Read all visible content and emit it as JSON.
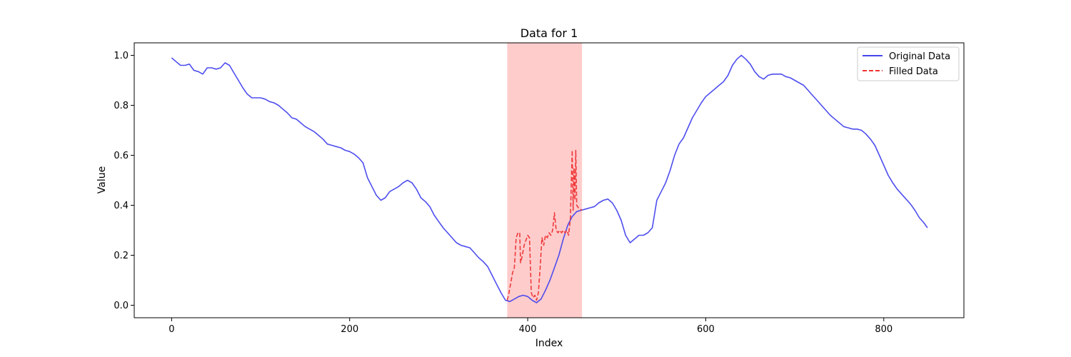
{
  "chart_data": {
    "type": "line",
    "title": "Data for 1",
    "xlabel": "Index",
    "ylabel": "Value",
    "xlim": [
      -42,
      890
    ],
    "ylim": [
      -0.05,
      1.05
    ],
    "x_ticks": [
      0,
      200,
      400,
      600,
      800
    ],
    "y_ticks": [
      0.0,
      0.2,
      0.4,
      0.6,
      0.8,
      1.0
    ],
    "x_tick_labels": [
      "0",
      "200",
      "400",
      "600",
      "800"
    ],
    "y_tick_labels": [
      "0.0",
      "0.2",
      "0.4",
      "0.6",
      "0.8",
      "1.0"
    ],
    "legend_position": "top-right",
    "grid": false,
    "shaded_region": {
      "x_start": 377,
      "x_end": 461,
      "color": "#ff9999"
    },
    "series": [
      {
        "name": "Original Data",
        "color": "#4444ee",
        "style": "solid",
        "points": [
          [
            0,
            0.99
          ],
          [
            5,
            0.975
          ],
          [
            10,
            0.96
          ],
          [
            15,
            0.96
          ],
          [
            20,
            0.965
          ],
          [
            25,
            0.94
          ],
          [
            30,
            0.935
          ],
          [
            35,
            0.925
          ],
          [
            40,
            0.95
          ],
          [
            45,
            0.95
          ],
          [
            50,
            0.945
          ],
          [
            55,
            0.95
          ],
          [
            60,
            0.97
          ],
          [
            65,
            0.96
          ],
          [
            70,
            0.93
          ],
          [
            75,
            0.9
          ],
          [
            80,
            0.87
          ],
          [
            85,
            0.845
          ],
          [
            90,
            0.83
          ],
          [
            95,
            0.83
          ],
          [
            100,
            0.83
          ],
          [
            105,
            0.825
          ],
          [
            110,
            0.815
          ],
          [
            115,
            0.81
          ],
          [
            120,
            0.8
          ],
          [
            125,
            0.785
          ],
          [
            130,
            0.77
          ],
          [
            135,
            0.75
          ],
          [
            140,
            0.745
          ],
          [
            145,
            0.73
          ],
          [
            150,
            0.715
          ],
          [
            155,
            0.705
          ],
          [
            160,
            0.695
          ],
          [
            165,
            0.68
          ],
          [
            170,
            0.665
          ],
          [
            175,
            0.645
          ],
          [
            180,
            0.64
          ],
          [
            185,
            0.635
          ],
          [
            190,
            0.63
          ],
          [
            195,
            0.62
          ],
          [
            200,
            0.615
          ],
          [
            205,
            0.605
          ],
          [
            210,
            0.59
          ],
          [
            215,
            0.57
          ],
          [
            220,
            0.51
          ],
          [
            225,
            0.475
          ],
          [
            230,
            0.44
          ],
          [
            235,
            0.42
          ],
          [
            240,
            0.43
          ],
          [
            245,
            0.455
          ],
          [
            250,
            0.465
          ],
          [
            255,
            0.475
          ],
          [
            260,
            0.49
          ],
          [
            265,
            0.5
          ],
          [
            270,
            0.49
          ],
          [
            275,
            0.465
          ],
          [
            280,
            0.43
          ],
          [
            285,
            0.415
          ],
          [
            290,
            0.395
          ],
          [
            295,
            0.36
          ],
          [
            300,
            0.335
          ],
          [
            305,
            0.31
          ],
          [
            310,
            0.29
          ],
          [
            315,
            0.27
          ],
          [
            320,
            0.25
          ],
          [
            325,
            0.24
          ],
          [
            330,
            0.235
          ],
          [
            335,
            0.23
          ],
          [
            340,
            0.21
          ],
          [
            345,
            0.19
          ],
          [
            350,
            0.175
          ],
          [
            355,
            0.155
          ],
          [
            360,
            0.12
          ],
          [
            365,
            0.085
          ],
          [
            370,
            0.05
          ],
          [
            375,
            0.02
          ],
          [
            380,
            0.015
          ],
          [
            385,
            0.025
          ],
          [
            390,
            0.035
          ],
          [
            395,
            0.04
          ],
          [
            400,
            0.035
          ],
          [
            405,
            0.02
          ],
          [
            410,
            0.01
          ],
          [
            415,
            0.025
          ],
          [
            420,
            0.06
          ],
          [
            425,
            0.1
          ],
          [
            430,
            0.15
          ],
          [
            435,
            0.2
          ],
          [
            440,
            0.265
          ],
          [
            445,
            0.32
          ],
          [
            450,
            0.355
          ],
          [
            455,
            0.375
          ],
          [
            460,
            0.38
          ],
          [
            465,
            0.385
          ],
          [
            470,
            0.39
          ],
          [
            475,
            0.395
          ],
          [
            480,
            0.41
          ],
          [
            485,
            0.42
          ],
          [
            490,
            0.425
          ],
          [
            495,
            0.41
          ],
          [
            500,
            0.38
          ],
          [
            505,
            0.34
          ],
          [
            510,
            0.28
          ],
          [
            515,
            0.25
          ],
          [
            520,
            0.265
          ],
          [
            525,
            0.28
          ],
          [
            530,
            0.28
          ],
          [
            535,
            0.29
          ],
          [
            540,
            0.31
          ],
          [
            545,
            0.42
          ],
          [
            550,
            0.455
          ],
          [
            555,
            0.49
          ],
          [
            560,
            0.54
          ],
          [
            565,
            0.6
          ],
          [
            570,
            0.645
          ],
          [
            575,
            0.67
          ],
          [
            580,
            0.71
          ],
          [
            585,
            0.75
          ],
          [
            590,
            0.78
          ],
          [
            595,
            0.81
          ],
          [
            600,
            0.835
          ],
          [
            605,
            0.85
          ],
          [
            610,
            0.865
          ],
          [
            615,
            0.88
          ],
          [
            620,
            0.895
          ],
          [
            625,
            0.92
          ],
          [
            630,
            0.96
          ],
          [
            635,
            0.985
          ],
          [
            640,
            1.0
          ],
          [
            645,
            0.985
          ],
          [
            650,
            0.965
          ],
          [
            655,
            0.935
          ],
          [
            660,
            0.915
          ],
          [
            665,
            0.905
          ],
          [
            670,
            0.92
          ],
          [
            675,
            0.925
          ],
          [
            680,
            0.925
          ],
          [
            685,
            0.925
          ],
          [
            690,
            0.915
          ],
          [
            695,
            0.91
          ],
          [
            700,
            0.9
          ],
          [
            705,
            0.89
          ],
          [
            710,
            0.88
          ],
          [
            715,
            0.86
          ],
          [
            720,
            0.84
          ],
          [
            725,
            0.82
          ],
          [
            730,
            0.8
          ],
          [
            735,
            0.78
          ],
          [
            740,
            0.76
          ],
          [
            745,
            0.745
          ],
          [
            750,
            0.73
          ],
          [
            755,
            0.715
          ],
          [
            760,
            0.71
          ],
          [
            765,
            0.705
          ],
          [
            770,
            0.705
          ],
          [
            775,
            0.7
          ],
          [
            780,
            0.685
          ],
          [
            785,
            0.665
          ],
          [
            790,
            0.64
          ],
          [
            795,
            0.6
          ],
          [
            800,
            0.56
          ],
          [
            805,
            0.52
          ],
          [
            810,
            0.49
          ],
          [
            815,
            0.465
          ],
          [
            820,
            0.445
          ],
          [
            825,
            0.425
          ],
          [
            830,
            0.405
          ],
          [
            835,
            0.38
          ],
          [
            840,
            0.35
          ],
          [
            845,
            0.33
          ],
          [
            849,
            0.31
          ]
        ]
      },
      {
        "name": "Filled Data",
        "color": "#ee3333",
        "style": "dashed",
        "points": [
          [
            377,
            0.02
          ],
          [
            379,
            0.05
          ],
          [
            381,
            0.09
          ],
          [
            383,
            0.13
          ],
          [
            385,
            0.15
          ],
          [
            387,
            0.27
          ],
          [
            389,
            0.29
          ],
          [
            391,
            0.29
          ],
          [
            392,
            0.17
          ],
          [
            394,
            0.2
          ],
          [
            396,
            0.24
          ],
          [
            398,
            0.26
          ],
          [
            400,
            0.28
          ],
          [
            402,
            0.27
          ],
          [
            404,
            0.05
          ],
          [
            406,
            0.03
          ],
          [
            408,
            0.04
          ],
          [
            410,
            0.02
          ],
          [
            412,
            0.05
          ],
          [
            414,
            0.15
          ],
          [
            416,
            0.27
          ],
          [
            418,
            0.24
          ],
          [
            420,
            0.28
          ],
          [
            422,
            0.27
          ],
          [
            424,
            0.29
          ],
          [
            426,
            0.28
          ],
          [
            428,
            0.3
          ],
          [
            430,
            0.37
          ],
          [
            432,
            0.3
          ],
          [
            434,
            0.29
          ],
          [
            436,
            0.3
          ],
          [
            438,
            0.29
          ],
          [
            440,
            0.3
          ],
          [
            442,
            0.29
          ],
          [
            444,
            0.3
          ],
          [
            446,
            0.28
          ],
          [
            448,
            0.35
          ],
          [
            449,
            0.5
          ],
          [
            450,
            0.62
          ],
          [
            451,
            0.38
          ],
          [
            452,
            0.55
          ],
          [
            453,
            0.42
          ],
          [
            454,
            0.62
          ],
          [
            455,
            0.4
          ],
          [
            457,
            0.39
          ],
          [
            459,
            0.385
          ],
          [
            461,
            0.38
          ]
        ]
      }
    ]
  }
}
